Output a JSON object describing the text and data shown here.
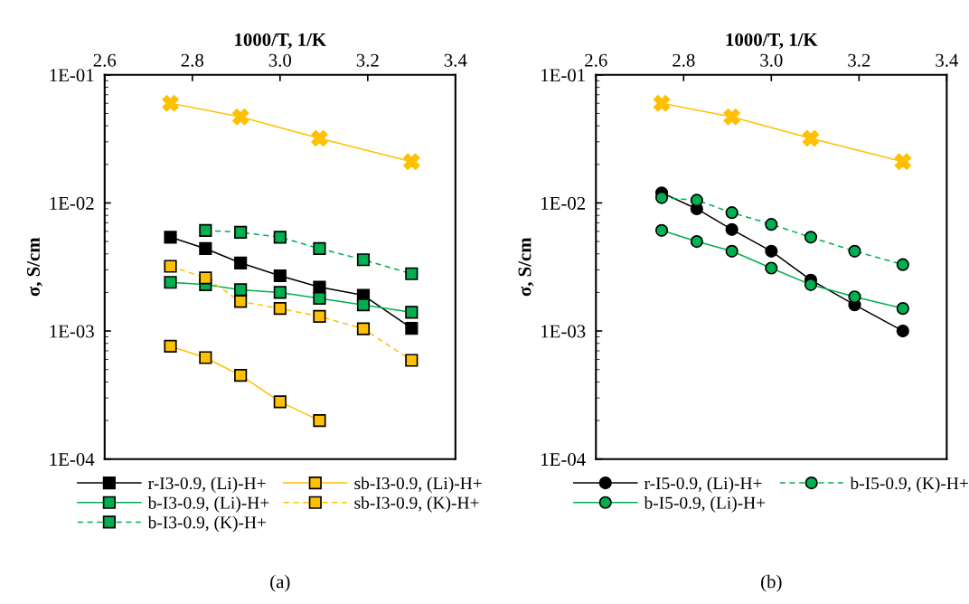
{
  "chart_data": [
    {
      "type": "line",
      "title": "(a)",
      "xlabel": "1000/T, 1/K",
      "ylabel": "σ, S/cm",
      "log": "y",
      "grid": false,
      "legend": "bottom",
      "xlim": [
        2.6,
        3.4
      ],
      "xticks": [
        {
          "value": 2.6,
          "label": "2.6"
        },
        {
          "value": 2.8,
          "label": "2.8"
        },
        {
          "value": 3.0,
          "label": "3.0"
        },
        {
          "value": 3.2,
          "label": "3.2"
        },
        {
          "value": 3.4,
          "label": "3.4"
        }
      ],
      "ylim": [
        0.0001,
        0.1
      ],
      "yticks": [
        {
          "value": 0.0001,
          "label": "1E-04"
        },
        {
          "value": 0.001,
          "label": "1E-03"
        },
        {
          "value": 0.01,
          "label": "1E-02"
        },
        {
          "value": 0.1,
          "label": "1E-01"
        }
      ],
      "x": [
        2.75,
        2.83,
        2.91,
        3.0,
        3.09,
        3.19,
        3.3
      ],
      "series": [
        {
          "name": "r-I3-0.9, (Li)-H+",
          "color": "#000000",
          "marker": "square",
          "line_style": "solid",
          "values": [
            0.0054,
            0.0044,
            0.0034,
            0.0027,
            0.0022,
            0.0019,
            0.00105
          ]
        },
        {
          "color": "#ffc000",
          "marker": "cross",
          "line_style": "solid",
          "x": [
            2.75,
            2.91,
            3.09,
            3.3
          ],
          "values": [
            0.06,
            0.047,
            0.032,
            0.021
          ]
        },
        {
          "name": "b-I3-0.9, (Li)-H+",
          "color": "#00b050",
          "marker": "square",
          "line_style": "solid",
          "values": [
            0.0024,
            0.0023,
            0.0021,
            0.002,
            0.0018,
            0.0016,
            0.0014
          ]
        },
        {
          "name": "b-I3-0.9, (K)-H+",
          "color": "#00b050",
          "marker": "square",
          "line_style": "dashed",
          "values": [
            null,
            0.0061,
            0.0059,
            0.0054,
            0.0044,
            0.0036,
            0.0028
          ]
        },
        {
          "name": "sb-I3-0.9, (Li)-H+",
          "color": "#ffc000",
          "marker": "square",
          "line_style": "solid",
          "values": [
            0.00076,
            0.00062,
            0.00045,
            0.00028,
            0.0002,
            null,
            null
          ]
        },
        {
          "name": "sb-I3-0.9, (K)-H+",
          "color": "#ffc000",
          "marker": "square",
          "line_style": "dashed",
          "values": [
            0.0032,
            0.0026,
            0.0017,
            0.0015,
            0.0013,
            0.00104,
            0.00059
          ]
        }
      ]
    },
    {
      "type": "line",
      "title": "(b)",
      "xlabel": "1000/T, 1/K",
      "ylabel": "σ, S/cm",
      "log": "y",
      "grid": false,
      "legend": "bottom",
      "xlim": [
        2.6,
        3.4
      ],
      "xticks": [
        {
          "value": 2.6,
          "label": "2.6"
        },
        {
          "value": 2.8,
          "label": "2.8"
        },
        {
          "value": 3.0,
          "label": "3.0"
        },
        {
          "value": 3.2,
          "label": "3.2"
        },
        {
          "value": 3.4,
          "label": "3.4"
        }
      ],
      "ylim": [
        0.0001,
        0.1
      ],
      "yticks": [
        {
          "value": 0.0001,
          "label": "1E-04"
        },
        {
          "value": 0.001,
          "label": "1E-03"
        },
        {
          "value": 0.01,
          "label": "1E-02"
        },
        {
          "value": 0.1,
          "label": "1E-01"
        }
      ],
      "x": [
        2.75,
        2.83,
        2.91,
        3.0,
        3.09,
        3.19,
        3.3
      ],
      "series": [
        {
          "name": "r-I5-0.9, (Li)-H+",
          "color": "#000000",
          "marker": "circle",
          "line_style": "solid",
          "values": [
            0.012,
            0.009,
            0.0062,
            0.0042,
            0.0025,
            0.0016,
            0.001
          ]
        },
        {
          "color": "#ffc000",
          "marker": "cross",
          "line_style": "solid",
          "x": [
            2.75,
            2.91,
            3.09,
            3.3
          ],
          "values": [
            0.06,
            0.047,
            0.032,
            0.021
          ]
        },
        {
          "name": "b-I5-0.9, (Li)-H+",
          "color": "#00b050",
          "marker": "circle",
          "line_style": "solid",
          "values": [
            0.0061,
            0.005,
            0.0042,
            0.0031,
            0.0023,
            0.00185,
            0.0015
          ]
        },
        {
          "name": "b-I5-0.9, (K)-H+",
          "color": "#00b050",
          "marker": "circle",
          "line_style": "dashed",
          "values": [
            0.011,
            0.0105,
            0.0084,
            0.0068,
            0.0054,
            0.0042,
            0.0033
          ]
        }
      ]
    }
  ]
}
